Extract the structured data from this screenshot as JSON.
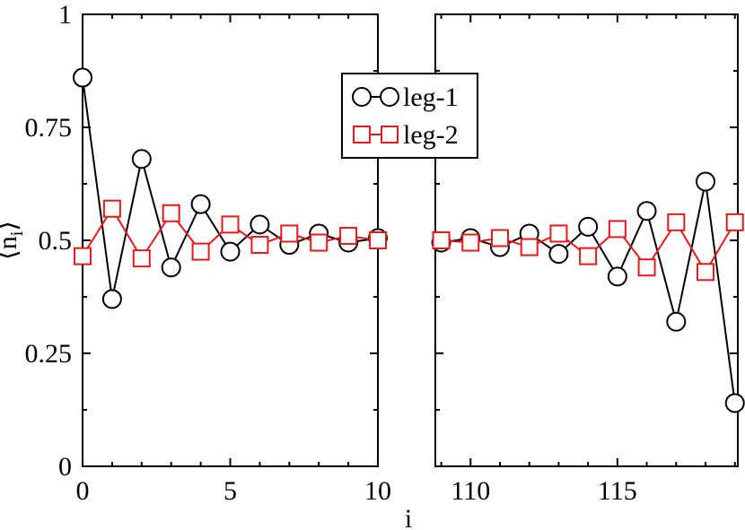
{
  "chart_data": {
    "type": "line",
    "title": "",
    "xlabel": "i",
    "ylabel": "⟨n",
    "ylabel_sub": "i",
    "ylabel_close": "⟩",
    "ylim": [
      0,
      1
    ],
    "y_ticks": [
      0,
      0.25,
      0.5,
      0.75,
      1
    ],
    "y_tick_labels": [
      "0",
      "0.25",
      "0.5",
      "0.75",
      "1"
    ],
    "grid": false,
    "legend_position": "top-center",
    "panels": [
      {
        "xlim": [
          0,
          10
        ],
        "x_ticks": [
          0,
          5,
          10
        ],
        "x_tick_labels": [
          "0",
          "5",
          "10"
        ]
      },
      {
        "xlim": [
          108.8,
          119.1
        ],
        "x_ticks": [
          110,
          115
        ],
        "x_tick_labels": [
          "110",
          "115"
        ]
      }
    ],
    "series": [
      {
        "name": "leg-1",
        "color": "#000000",
        "marker": "circle",
        "segments": [
          {
            "x": [
              0,
              1,
              2,
              3,
              4,
              5,
              6,
              7,
              8,
              9,
              10
            ],
            "y": [
              0.86,
              0.37,
              0.68,
              0.44,
              0.58,
              0.475,
              0.535,
              0.49,
              0.515,
              0.495,
              0.505
            ]
          },
          {
            "x": [
              109,
              110,
              111,
              112,
              113,
              114,
              115,
              116,
              117,
              118,
              119
            ],
            "y": [
              0.495,
              0.505,
              0.485,
              0.515,
              0.47,
              0.53,
              0.42,
              0.565,
              0.32,
              0.63,
              0.14
            ]
          }
        ]
      },
      {
        "name": "leg-2",
        "color": "#e41a1c",
        "marker": "square",
        "segments": [
          {
            "x": [
              0,
              1,
              2,
              3,
              4,
              5,
              6,
              7,
              8,
              9,
              10
            ],
            "y": [
              0.465,
              0.57,
              0.46,
              0.56,
              0.475,
              0.535,
              0.49,
              0.515,
              0.495,
              0.51,
              0.5
            ]
          },
          {
            "x": [
              109,
              110,
              111,
              112,
              113,
              114,
              115,
              116,
              117,
              118,
              119
            ],
            "y": [
              0.5,
              0.495,
              0.505,
              0.485,
              0.515,
              0.465,
              0.525,
              0.44,
              0.54,
              0.43,
              0.54
            ]
          }
        ]
      }
    ]
  }
}
